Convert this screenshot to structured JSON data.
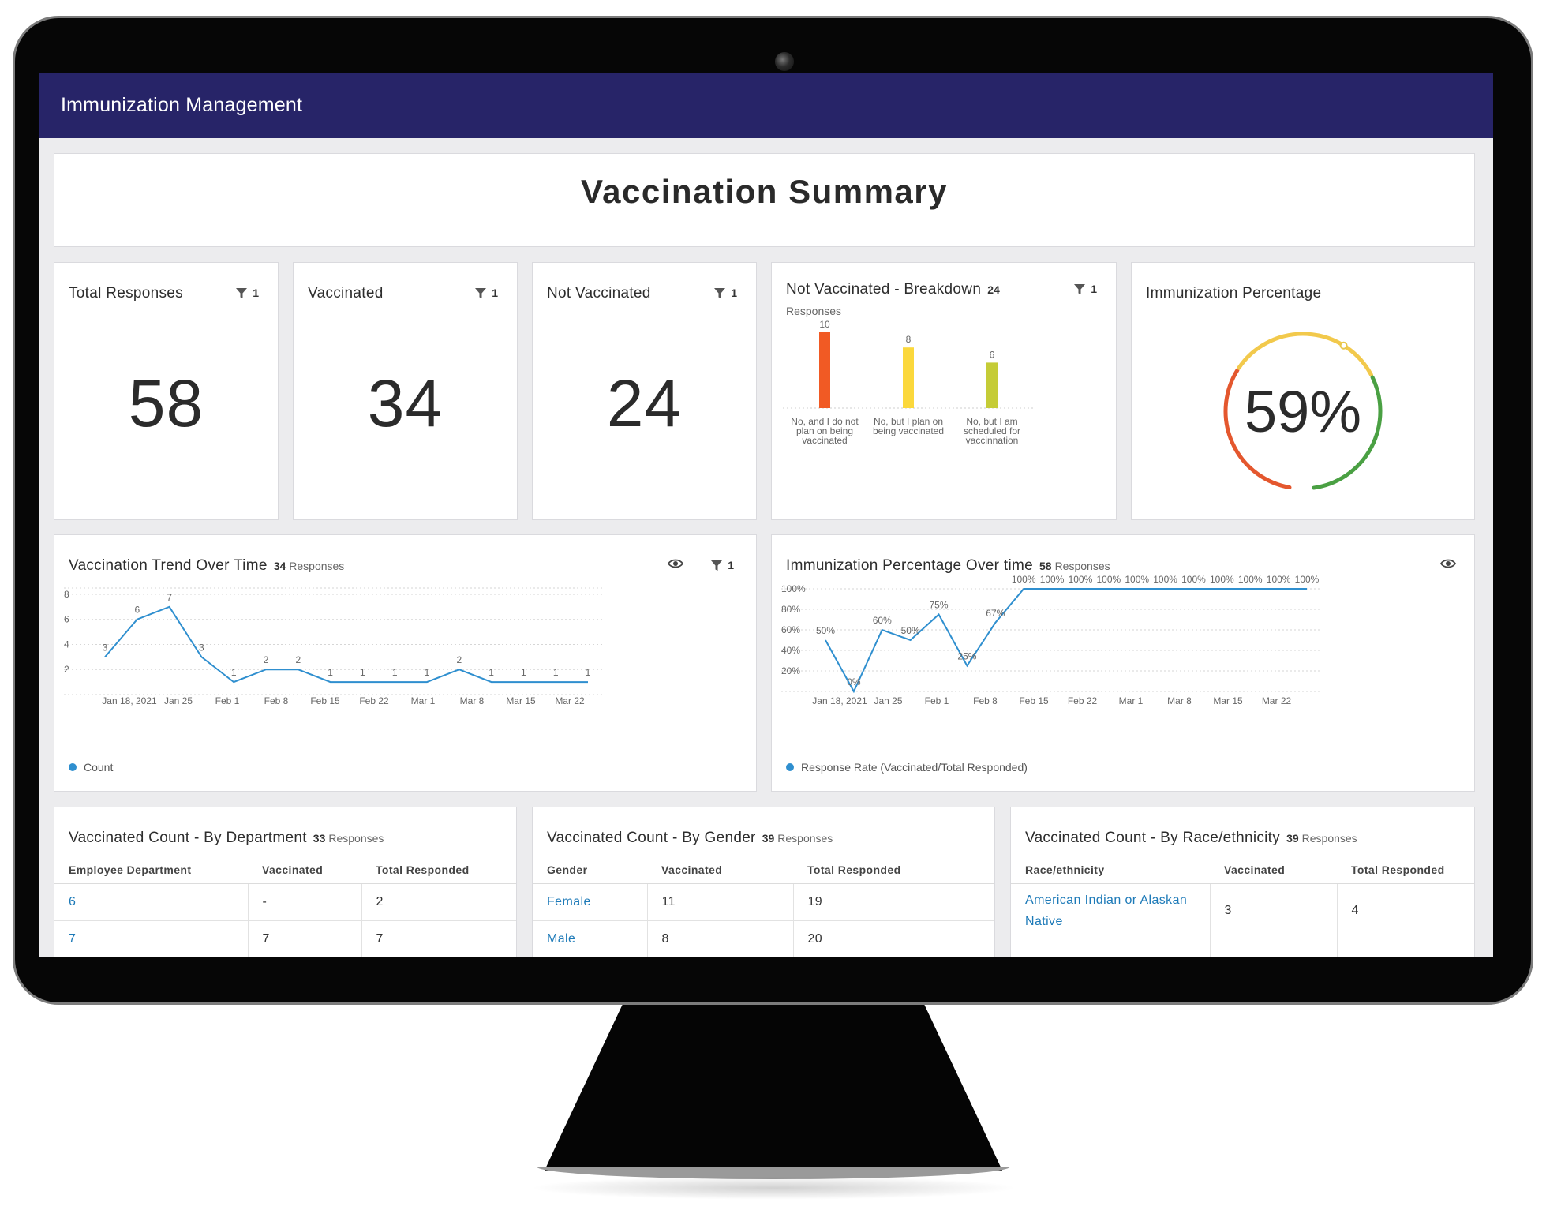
{
  "app": {
    "title": "Immunization Management"
  },
  "summary": {
    "title": "Vaccination Summary"
  },
  "kpis": {
    "total": {
      "label": "Total Responses",
      "value": "58",
      "filter_count": "1"
    },
    "vaccinated": {
      "label": "Vaccinated",
      "value": "34",
      "filter_count": "1"
    },
    "not_vaccinated": {
      "label": "Not Vaccinated",
      "value": "24",
      "filter_count": "1"
    }
  },
  "breakdown": {
    "title": "Not Vaccinated - Breakdown",
    "count": "24",
    "responses_label": "Responses",
    "filter_count": "1"
  },
  "gauge": {
    "title": "Immunization Percentage",
    "value_text": "59%",
    "value": 0.59,
    "colors": [
      "#e4572e",
      "#f2c94c",
      "#4aa043"
    ]
  },
  "trend": {
    "title": "Vaccination Trend Over Time",
    "count": "34",
    "responses_label": "Responses",
    "filter_count": "1",
    "legend": "Count"
  },
  "imm_time": {
    "title": "Immunization Percentage Over time",
    "count": "58",
    "responses_label": "Responses",
    "legend": "Response Rate (Vaccinated/Total Responded)"
  },
  "dept": {
    "title": "Vaccinated Count - By Department",
    "count": "33",
    "responses_label": "Responses",
    "headers": [
      "Employee Department",
      "Vaccinated",
      "Total Responded"
    ],
    "rows": [
      [
        "6",
        "-",
        "2"
      ],
      [
        "7",
        "7",
        "7"
      ]
    ]
  },
  "gender": {
    "title": "Vaccinated Count - By Gender",
    "count": "39",
    "responses_label": "Responses",
    "headers": [
      "Gender",
      "Vaccinated",
      "Total Responded"
    ],
    "rows": [
      [
        "Female",
        "11",
        "19"
      ],
      [
        "Male",
        "8",
        "20"
      ]
    ]
  },
  "race": {
    "title": "Vaccinated Count - By Race/ethnicity",
    "count": "39",
    "responses_label": "Responses",
    "headers": [
      "Race/ethnicity",
      "Vaccinated",
      "Total Responded"
    ],
    "rows": [
      [
        "American Indian or Alaskan Native",
        "3",
        "4"
      ]
    ]
  },
  "chart_data": [
    {
      "type": "bar",
      "categories": [
        "No, and I do not plan on being vaccinated",
        "No, but I plan on being vaccinated",
        "No, but I am scheduled for vaccinnation"
      ],
      "category_lines": [
        [
          "No, and I do not",
          "plan on being",
          "vaccinated"
        ],
        [
          "No, but I plan on",
          "being vaccinated"
        ],
        [
          "No, but I am",
          "scheduled for",
          "vaccinnation"
        ]
      ],
      "values": [
        10,
        8,
        6
      ],
      "colors": [
        "#f15a24",
        "#fbd83c",
        "#c5cc37"
      ],
      "title": "Not Vaccinated - Breakdown",
      "ylim": [
        0,
        10
      ]
    },
    {
      "type": "line",
      "title": "Vaccination Trend Over Time",
      "series": [
        {
          "name": "Count",
          "values": [
            3,
            6,
            7,
            3,
            1,
            2,
            2,
            1,
            1,
            1,
            1,
            2,
            1,
            1,
            1,
            1
          ]
        }
      ],
      "color": "#2f8fcf",
      "x_tick_labels": [
        "Jan 18, 2021",
        "Jan 25",
        "Feb 1",
        "Feb 8",
        "Feb 15",
        "Feb 22",
        "Mar 1",
        "Mar 8",
        "Mar 15",
        "Mar 22"
      ],
      "y_ticks": [
        2,
        4,
        6,
        8
      ],
      "ylim": [
        0,
        8.5
      ],
      "grid": true,
      "legend": "bottom-left"
    },
    {
      "type": "line",
      "title": "Immunization Percentage Over time",
      "series": [
        {
          "name": "Response Rate (Vaccinated/Total Responded)",
          "values": [
            50,
            0,
            60,
            50,
            75,
            25,
            67,
            100,
            100,
            100,
            100,
            100,
            100,
            100,
            100,
            100,
            100,
            100
          ]
        }
      ],
      "value_labels": [
        "50%",
        "0%",
        "60%",
        "50%",
        "75%",
        "25%",
        "67%",
        "100%",
        "100%",
        "100%",
        "100%",
        "100%",
        "100%",
        "100%",
        "100%",
        "100%",
        "100%",
        "100%"
      ],
      "color": "#2f8fcf",
      "x_tick_labels": [
        "Jan 18, 2021",
        "Jan 25",
        "Feb 1",
        "Feb 8",
        "Feb 15",
        "Feb 22",
        "Mar 1",
        "Mar 8",
        "Mar 15",
        "Mar 22"
      ],
      "y_ticks": [
        "20%",
        "40%",
        "60%",
        "80%",
        "100%"
      ],
      "ylim": [
        0,
        100
      ],
      "grid": true,
      "legend": "bottom-left"
    }
  ]
}
